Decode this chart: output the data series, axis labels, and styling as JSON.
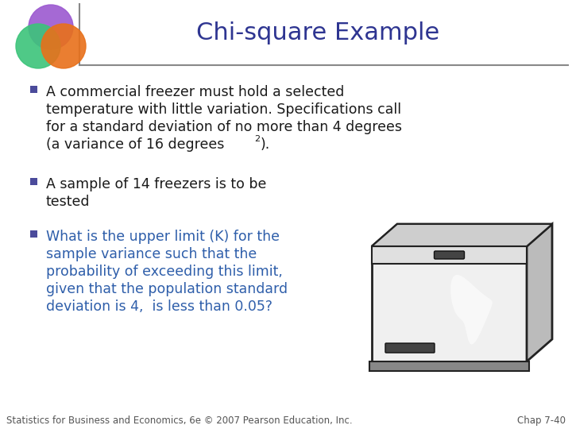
{
  "title": "Chi-square Example",
  "title_color": "#2E3591",
  "title_fontsize": 22,
  "background_color": "#FFFFFF",
  "bullet_color": "#4B4B9B",
  "bullet1_text_color": "#1A1A1A",
  "bullet2_text_color": "#1A1A1A",
  "bullet3_text_color": "#2E5EAA",
  "bullet1_line1": "A commercial freezer must hold a selected",
  "bullet1_line2": "temperature with little variation. Specifications call",
  "bullet1_line3": "for a standard deviation of no more than 4 degrees",
  "bullet1_line4": "(a variance of 16 degrees",
  "bullet1_sup": "2",
  "bullet1_line4_end": ").",
  "bullet2_line1": "A sample of 14 freezers is to be",
  "bullet2_line2": "tested",
  "bullet3_line1": "What is the upper limit (K) for the",
  "bullet3_line2": "sample variance such that the",
  "bullet3_line3": "probability of exceeding this limit,",
  "bullet3_line4": "given that the population standard",
  "bullet3_line5": "deviation is 4,  is less than 0.05?",
  "footer_left": "Statistics for Business and Economics, 6e © 2007 Pearson Education, Inc.",
  "footer_right": "Chap 7-40",
  "footer_color": "#555555",
  "footer_fontsize": 8.5,
  "separator_color": "#888888",
  "logo_colors": {
    "purple": "#9B59D0",
    "green": "#3CC47A",
    "orange": "#E8701A",
    "yellow": "#F0D050"
  },
  "freezer": {
    "front_color": "#F0F0F0",
    "top_color": "#CCCCCC",
    "side_color": "#BBBBBB",
    "edge_color": "#222222",
    "handle_color": "#444444",
    "base_color": "#555555",
    "frost_color": "#FFFFFF"
  }
}
